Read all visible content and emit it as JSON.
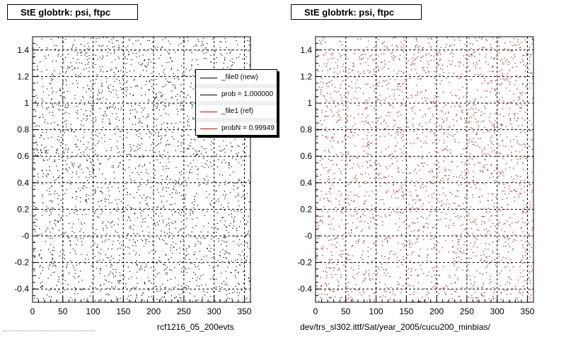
{
  "panels": [
    {
      "title": "StE globtrk: psi, ftpc",
      "caption": "rcf1216_05_200evts",
      "marker_color": "#000000"
    },
    {
      "title": "StE globtrk: psi, ftpc",
      "caption": "dev/trs_sl302.ittf/Sat/year_2005/cucu200_minbias/",
      "marker_color": "#cc0000"
    }
  ],
  "legend": {
    "entries": [
      {
        "label": "_file0 (new)",
        "color": "#000000"
      },
      {
        "label": "prob = 1.000000",
        "color": "#000000"
      },
      {
        "label": "_file1 (ref)",
        "color": "#cc0000"
      },
      {
        "label": "probN = 0.99949",
        "color": "#cc0000"
      }
    ]
  },
  "chart_data": [
    {
      "type": "scatter",
      "title": "StE globtrk: psi, ftpc",
      "xlabel": "",
      "ylabel": "",
      "xlim": [
        0,
        360
      ],
      "ylim": [
        -0.5,
        1.5
      ],
      "x_ticks": [
        "0",
        "50",
        "100",
        "150",
        "200",
        "250",
        "300",
        "350"
      ],
      "y_ticks": [
        "-0.4",
        "-0.2",
        "-0",
        "0.2",
        "0.4",
        "0.6",
        "0.8",
        "1",
        "1.2",
        "1.4"
      ],
      "grid": true,
      "series": [
        {
          "color": "#000000",
          "distribution": "uniform",
          "x_range": [
            0,
            360
          ],
          "y_range": [
            -0.5,
            1.5
          ]
        }
      ]
    },
    {
      "type": "scatter",
      "title": "StE globtrk: psi, ftpc",
      "xlabel": "",
      "ylabel": "",
      "xlim": [
        0,
        360
      ],
      "ylim": [
        -0.5,
        1.5
      ],
      "x_ticks": [
        "0",
        "50",
        "100",
        "150",
        "200",
        "250",
        "300",
        "350"
      ],
      "y_ticks": [
        "-0.4",
        "-0.2",
        "-0",
        "0.2",
        "0.4",
        "0.6",
        "0.8",
        "1",
        "1.2",
        "1.4"
      ],
      "grid": true,
      "series": [
        {
          "color": "#cc0000",
          "distribution": "uniform",
          "x_range": [
            0,
            360
          ],
          "y_range": [
            -0.5,
            1.5
          ]
        }
      ]
    }
  ]
}
